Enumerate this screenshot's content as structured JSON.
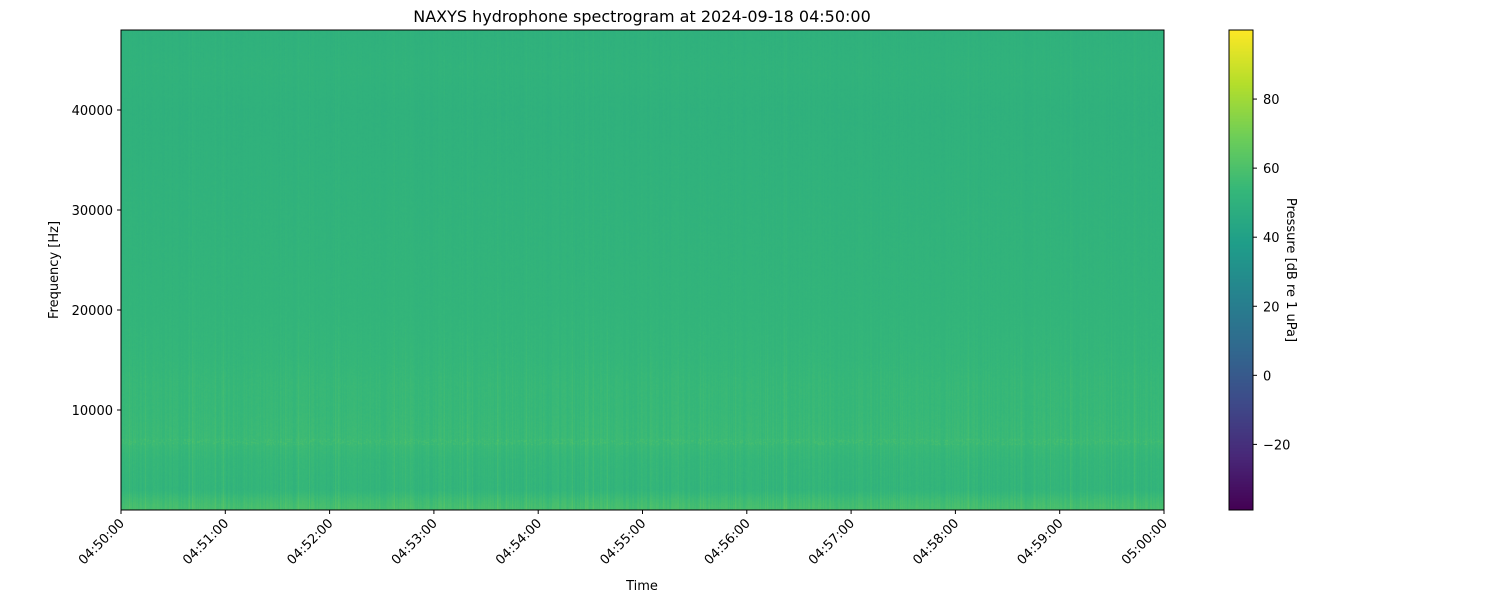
{
  "chart_data": {
    "type": "heatmap",
    "title": "NAXYS hydrophone spectrogram at 2024-09-18 04:50:00",
    "xlabel": "Time",
    "ylabel": "Frequency [Hz]",
    "x_tick_labels": [
      "04:50:00",
      "04:51:00",
      "04:52:00",
      "04:53:00",
      "04:54:00",
      "04:55:00",
      "04:56:00",
      "04:57:00",
      "04:58:00",
      "04:59:00",
      "05:00:00"
    ],
    "xlim": [
      "04:50:00",
      "05:00:00"
    ],
    "y_ticks": [
      10000,
      20000,
      30000,
      40000
    ],
    "ylim": [
      0,
      48000
    ],
    "colormap": "viridis",
    "colorbar": {
      "label": "Pressure [dB re 1 uPa]",
      "ticks": [
        -20,
        0,
        20,
        40,
        60,
        80
      ],
      "range": [
        -39,
        100
      ]
    },
    "band_levels": {
      "frequency_hz": [
        300,
        1000,
        2000,
        5000,
        6800,
        10000,
        12500,
        15000,
        20000,
        30000,
        40000,
        44000,
        48000
      ],
      "db": [
        58,
        56,
        52,
        53,
        55,
        54,
        54,
        53,
        52,
        51,
        50,
        51,
        50
      ]
    },
    "grid": false
  }
}
